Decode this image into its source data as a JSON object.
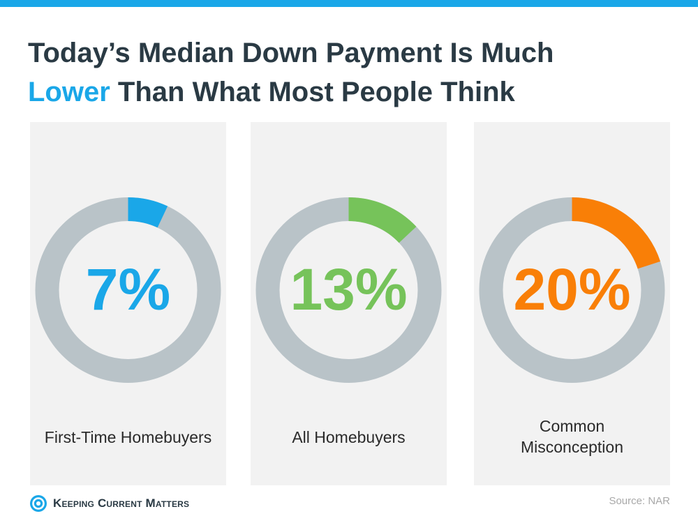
{
  "title": {
    "line1": "Today’s Median Down Payment Is Much",
    "highlight": "Lower",
    "line2_rest": " Than What Most People Think"
  },
  "colors": {
    "accent": "#1aa7e8",
    "ring_track": "#b9c3c8",
    "panel_bg": "#f2f2f2",
    "title_text": "#2a3a44"
  },
  "chart_data": {
    "type": "pie",
    "style": "donut",
    "series": [
      {
        "label": "First-Time Homebuyers",
        "value": 7,
        "value_text": "7%",
        "color": "#1aa7e8"
      },
      {
        "label": "All Homebuyers",
        "value": 13,
        "value_text": "13%",
        "color": "#76c35a"
      },
      {
        "label_lines": [
          "Common",
          "Misconception"
        ],
        "value": 20,
        "value_text": "20%",
        "color": "#f97f07"
      }
    ],
    "unit": "%",
    "total": 100
  },
  "footer": {
    "brand": "Keeping Current Matters",
    "source": "Source: NAR"
  }
}
